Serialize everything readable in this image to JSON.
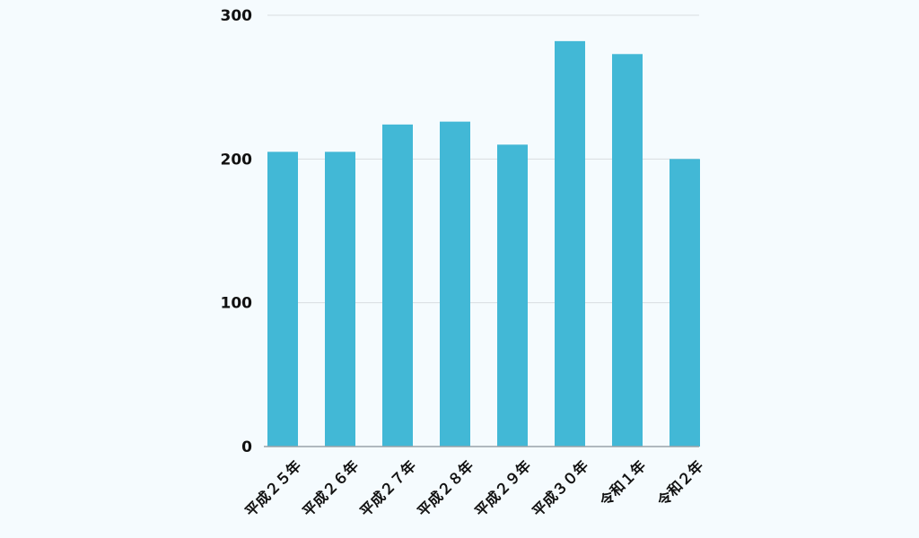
{
  "chart_data": {
    "type": "bar",
    "categories": [
      "平成２５年",
      "平成２６年",
      "平成２７年",
      "平成２８年",
      "平成２９年",
      "平成３０年",
      "令和１年",
      "令和２年"
    ],
    "values": [
      205,
      205,
      224,
      226,
      210,
      282,
      273,
      200
    ],
    "ylim": [
      0,
      300
    ],
    "yticks": [
      0,
      100,
      200,
      300
    ],
    "grid": true,
    "legend": "none",
    "colors": {
      "bar": "#42b8d6",
      "grid": "#d9dde0",
      "axis": "#9aa3a8",
      "background": "#f5fbfe"
    }
  }
}
